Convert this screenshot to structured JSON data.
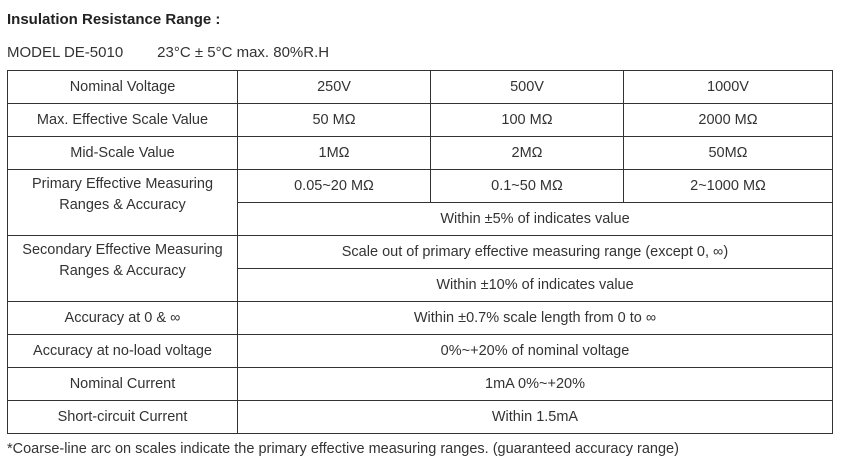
{
  "title": "Insulation Resistance Range :",
  "model": "MODEL DE-5010",
  "conditions": "23°C ± 5°C max. 80%R.H",
  "table": {
    "nominal_voltage": {
      "label": "Nominal Voltage",
      "values": [
        "250V",
        "500V",
        "1000V"
      ]
    },
    "max_scale": {
      "label": "Max. Effective Scale Value",
      "values": [
        "50 MΩ",
        "100 MΩ",
        "2000 MΩ"
      ]
    },
    "mid_scale": {
      "label": "Mid-Scale Value",
      "values": [
        "1MΩ",
        "2MΩ",
        "50MΩ"
      ]
    },
    "primary": {
      "label_line1": "Primary Effective Measuring",
      "label_line2": "Ranges & Accuracy",
      "values": [
        "0.05~20 MΩ",
        "0.1~50 MΩ",
        "2~1000 MΩ"
      ],
      "accuracy": "Within ±5% of indicates value"
    },
    "secondary": {
      "label_line1": "Secondary Effective Measuring",
      "label_line2": "Ranges & Accuracy",
      "range": "Scale out of primary effective measuring range (except 0, ∞)",
      "accuracy": "Within ±10% of indicates value"
    },
    "accuracy_zero_inf": {
      "label": "Accuracy at 0 & ∞",
      "value": "Within ±0.7% scale length from 0 to ∞"
    },
    "accuracy_no_load": {
      "label": "Accuracy at no-load voltage",
      "value": "0%~+20% of nominal voltage"
    },
    "nominal_current": {
      "label": "Nominal Current",
      "value": "1mA 0%~+20%"
    },
    "short_circuit": {
      "label": "Short-circuit Current",
      "value": "Within 1.5mA"
    }
  },
  "footnote": "*Coarse-line arc on scales indicate the primary effective measuring ranges. (guaranteed accuracy range)"
}
